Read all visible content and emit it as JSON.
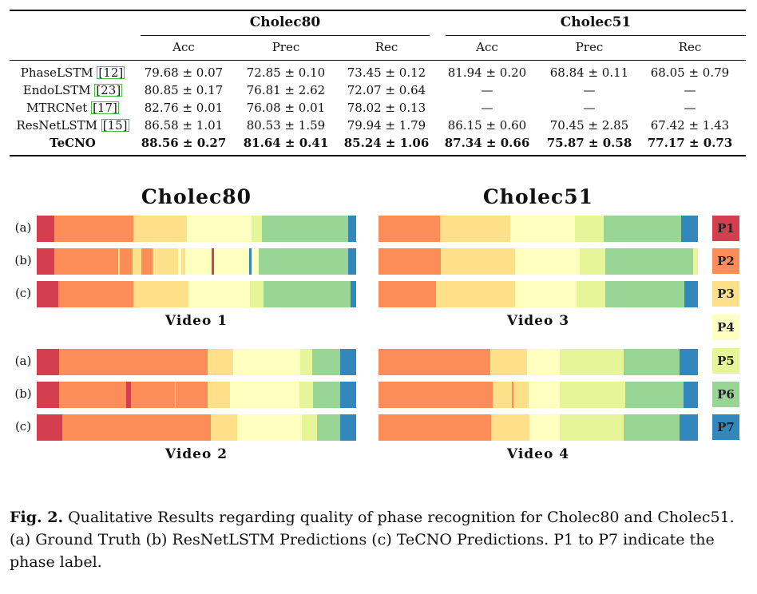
{
  "table": {
    "groups": [
      "Cholec80",
      "Cholec51"
    ],
    "subheaders": [
      "Acc",
      "Prec",
      "Rec",
      "Acc",
      "Prec",
      "Rec"
    ],
    "rows": [
      {
        "method": "PhaseLSTM",
        "cite": "[12]",
        "bold": false,
        "cells": [
          "79.68 ± 0.07",
          "72.85 ± 0.10",
          "73.45 ± 0.12",
          "81.94 ± 0.20",
          "68.84 ± 0.11",
          "68.05 ± 0.79"
        ]
      },
      {
        "method": "EndoLSTM",
        "cite": "[23]",
        "bold": false,
        "cells": [
          "80.85 ± 0.17",
          "76.81 ± 2.62",
          "72.07 ± 0.64",
          "—",
          "—",
          "—"
        ]
      },
      {
        "method": "MTRCNet",
        "cite": "[17]",
        "bold": false,
        "cells": [
          "82.76 ± 0.01",
          "76.08 ± 0.01",
          "78.02 ± 0.13",
          "—",
          "—",
          "—"
        ]
      },
      {
        "method": "ResNetLSTM",
        "cite": "[15]",
        "bold": false,
        "cells": [
          "86.58 ± 1.01",
          "80.53 ± 1.59",
          "79.94 ± 1.79",
          "86.15 ± 0.60",
          "70.45 ± 2.85",
          "67.42 ± 1.43"
        ]
      },
      {
        "method": "TeCNO",
        "cite": "",
        "bold": true,
        "cells": [
          "88.56 ± 0.27",
          "81.64 ± 0.41",
          "85.24 ± 1.06",
          "87.34 ± 0.66",
          "75.87 ± 0.58",
          "77.17 ± 0.73"
        ]
      }
    ]
  },
  "figure": {
    "titles": [
      "Cholec80",
      "Cholec51"
    ],
    "row_labels": [
      "(a)",
      "(b)",
      "(c)"
    ],
    "videos": [
      "Video 1",
      "Video 3",
      "Video 2",
      "Video 4"
    ],
    "phase_colors": {
      "P1": "#d53e4f",
      "P2": "#fc8d59",
      "P3": "#fee08b",
      "P4": "#ffffbf",
      "P5": "#e6f598",
      "P6": "#99d594",
      "P7": "#3288bd"
    },
    "legend": [
      "P1",
      "P2",
      "P3",
      "P4",
      "P5",
      "P6",
      "P7"
    ],
    "bars": {
      "video1": [
        [
          [
            "P1",
            0,
            0.056
          ],
          [
            "P2",
            0.056,
            0.302
          ],
          [
            "P3",
            0.302,
            0.47
          ],
          [
            "P4",
            0.47,
            0.672
          ],
          [
            "P5",
            0.672,
            0.705
          ],
          [
            "P6",
            0.705,
            0.976
          ],
          [
            "P7",
            0.976,
            1
          ]
        ],
        [
          [
            "P1",
            0,
            0.056
          ],
          [
            "P2",
            0.056,
            0.256
          ],
          [
            "P3",
            0.256,
            0.259
          ],
          [
            "P2",
            0.259,
            0.299
          ],
          [
            "P3",
            0.299,
            0.328
          ],
          [
            "P2",
            0.328,
            0.362
          ],
          [
            "P3",
            0.362,
            0.372
          ],
          [
            "P4",
            0.372,
            0.374
          ],
          [
            "P3",
            0.374,
            0.442
          ],
          [
            "P4",
            0.442,
            0.452
          ],
          [
            "P3",
            0.452,
            0.465
          ],
          [
            "P4",
            0.465,
            0.548
          ],
          [
            "P1",
            0.548,
            0.556
          ],
          [
            "P4",
            0.556,
            0.664
          ],
          [
            "P7",
            0.664,
            0.672
          ],
          [
            "P4",
            0.672,
            0.696
          ],
          [
            "P6",
            0.696,
            0.976
          ],
          [
            "P7",
            0.976,
            1
          ]
        ],
        [
          [
            "P1",
            0,
            0.068
          ],
          [
            "P2",
            0.068,
            0.302
          ],
          [
            "P3",
            0.302,
            0.475
          ],
          [
            "P4",
            0.475,
            0.667
          ],
          [
            "P5",
            0.667,
            0.709
          ],
          [
            "P6",
            0.709,
            0.982
          ],
          [
            "P7",
            0.982,
            1
          ]
        ]
      ],
      "video3": [
        [
          [
            "P2",
            0,
            0.193
          ],
          [
            "P3",
            0.193,
            0.413
          ],
          [
            "P4",
            0.413,
            0.616
          ],
          [
            "P5",
            0.616,
            0.704
          ],
          [
            "P6",
            0.704,
            0.948
          ],
          [
            "P7",
            0.948,
            1
          ]
        ],
        [
          [
            "P2",
            0,
            0.195
          ],
          [
            "P3",
            0.195,
            0.427
          ],
          [
            "P4",
            0.427,
            0.631
          ],
          [
            "P5",
            0.631,
            0.709
          ],
          [
            "P6",
            0.709,
            0.985
          ],
          [
            "P5",
            0.985,
            1
          ]
        ],
        [
          [
            "P2",
            0,
            0.18
          ],
          [
            "P3",
            0.18,
            0.428
          ],
          [
            "P4",
            0.428,
            0.62
          ],
          [
            "P5",
            0.62,
            0.709
          ],
          [
            "P6",
            0.709,
            0.958
          ],
          [
            "P7",
            0.958,
            1
          ]
        ]
      ],
      "video2": [
        [
          [
            "P1",
            0,
            0.069
          ],
          [
            "P2",
            0.069,
            0.536
          ],
          [
            "P3",
            0.536,
            0.614
          ],
          [
            "P4",
            0.614,
            0.826
          ],
          [
            "P5",
            0.826,
            0.863
          ],
          [
            "P6",
            0.863,
            0.95
          ],
          [
            "P7",
            0.95,
            1
          ]
        ],
        [
          [
            "P1",
            0,
            0.069
          ],
          [
            "P2",
            0.069,
            0.28
          ],
          [
            "P1",
            0.28,
            0.296
          ],
          [
            "P2",
            0.296,
            0.432
          ],
          [
            "P3",
            0.432,
            0.436
          ],
          [
            "P2",
            0.436,
            0.534
          ],
          [
            "P3",
            0.534,
            0.606
          ],
          [
            "P4",
            0.606,
            0.823
          ],
          [
            "P5",
            0.823,
            0.864
          ],
          [
            "P6",
            0.864,
            0.95
          ],
          [
            "P7",
            0.95,
            1
          ]
        ],
        [
          [
            "P1",
            0,
            0.08
          ],
          [
            "P2",
            0.08,
            0.545
          ],
          [
            "P3",
            0.545,
            0.627
          ],
          [
            "P4",
            0.627,
            0.829
          ],
          [
            "P5",
            0.829,
            0.877
          ],
          [
            "P6",
            0.877,
            0.95
          ],
          [
            "P7",
            0.95,
            1
          ]
        ]
      ],
      "video4": [
        [
          [
            "P2",
            0,
            0.35
          ],
          [
            "P3",
            0.35,
            0.466
          ],
          [
            "P4",
            0.466,
            0.567
          ],
          [
            "P5",
            0.567,
            0.768
          ],
          [
            "P6",
            0.768,
            0.942
          ],
          [
            "P7",
            0.942,
            1
          ]
        ],
        [
          [
            "P2",
            0,
            0.357
          ],
          [
            "P3",
            0.357,
            0.418
          ],
          [
            "P2",
            0.418,
            0.423
          ],
          [
            "P3",
            0.423,
            0.47
          ],
          [
            "P4",
            0.47,
            0.567
          ],
          [
            "P5",
            0.567,
            0.773
          ],
          [
            "P6",
            0.773,
            0.956
          ],
          [
            "P7",
            0.956,
            1
          ]
        ],
        [
          [
            "P2",
            0,
            0.352
          ],
          [
            "P3",
            0.352,
            0.473
          ],
          [
            "P4",
            0.473,
            0.567
          ],
          [
            "P5",
            0.567,
            0.768
          ],
          [
            "P6",
            0.768,
            0.942
          ],
          [
            "P7",
            0.942,
            1
          ]
        ]
      ]
    }
  },
  "caption": {
    "label": "Fig. 2.",
    "text": " Qualitative Results regarding quality of phase recognition for Cholec80 and Cholec51. (a) Ground Truth (b) ResNetLSTM Predictions (c) TeCNO Predictions. P1 to P7 indicate the phase label."
  }
}
